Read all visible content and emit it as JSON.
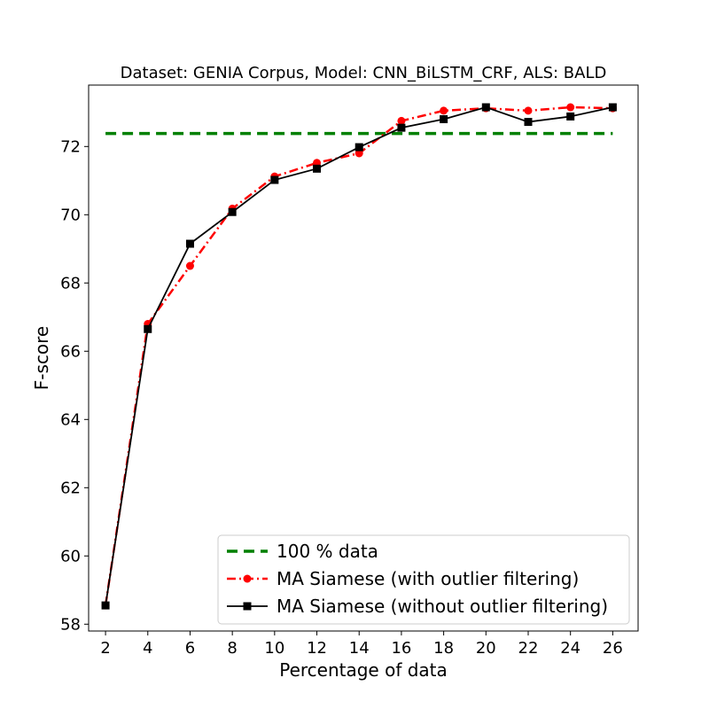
{
  "chart_data": {
    "type": "line",
    "title": "Dataset: GENIA Corpus, Model: CNN_BiLSTM_CRF, ALS: BALD",
    "xlabel": "Percentage of data",
    "ylabel": "F-score",
    "x": [
      2,
      4,
      6,
      8,
      10,
      12,
      14,
      16,
      18,
      20,
      22,
      24,
      26
    ],
    "xticks": [
      "2",
      "4",
      "6",
      "8",
      "10",
      "12",
      "14",
      "16",
      "18",
      "20",
      "22",
      "24",
      "26"
    ],
    "yticks": [
      "58",
      "60",
      "62",
      "64",
      "66",
      "68",
      "70",
      "72"
    ],
    "xlim": [
      1.2,
      27.2
    ],
    "ylim": [
      57.8,
      73.8
    ],
    "grid": false,
    "legend_position": "lower-right",
    "series": [
      {
        "name": "100 % data",
        "style": "dashed",
        "marker": "none",
        "color": "#008000",
        "x": [
          2,
          26
        ],
        "values": [
          72.38,
          72.38
        ]
      },
      {
        "name": "MA Siamese (with outlier filtering)",
        "style": "dashdot",
        "marker": "circle",
        "color": "#ff0000",
        "values": [
          58.55,
          66.8,
          68.5,
          70.18,
          71.12,
          71.52,
          71.8,
          72.75,
          73.05,
          73.12,
          73.05,
          73.15,
          73.12
        ]
      },
      {
        "name": "MA Siamese (without outlier filtering)",
        "style": "solid",
        "marker": "square",
        "color": "#000000",
        "values": [
          58.55,
          66.65,
          69.15,
          70.08,
          71.02,
          71.35,
          71.98,
          72.55,
          72.8,
          73.15,
          72.72,
          72.88,
          73.15
        ]
      }
    ]
  }
}
